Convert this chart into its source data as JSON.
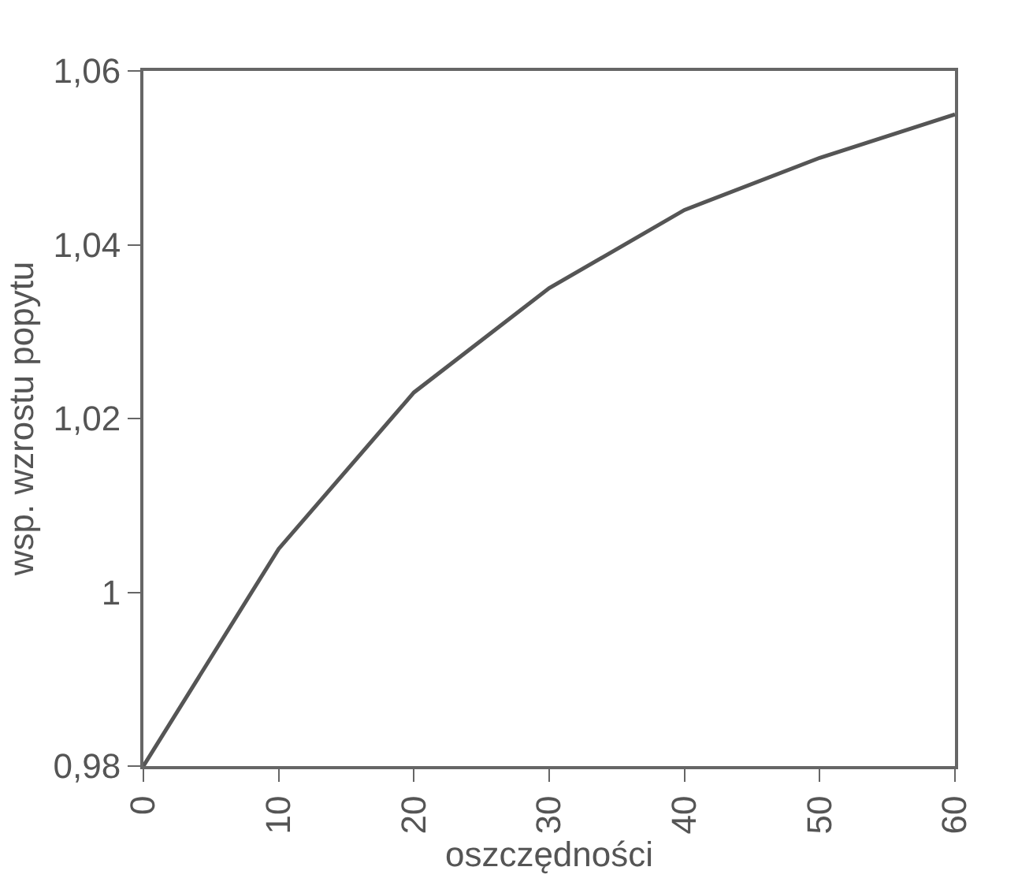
{
  "chart_data": {
    "type": "line",
    "xlabel": "oszczędności",
    "ylabel": "wsp. wzrostu popytu",
    "x": [
      0,
      10,
      20,
      30,
      40,
      50,
      60
    ],
    "series": [
      {
        "color": "#555555",
        "values": [
          0.98,
          1.005,
          1.023,
          1.035,
          1.044,
          1.05,
          1.055
        ]
      }
    ],
    "xlim": [
      0,
      60
    ],
    "xticks": [
      0,
      10,
      20,
      30,
      40,
      50,
      60
    ],
    "ylim": [
      0.98,
      1.06
    ],
    "yticks": [
      {
        "value": 0.98,
        "label": "0,98"
      },
      1,
      {
        "value": 1.02,
        "label": "1,02"
      },
      {
        "value": 1.04,
        "label": "1,04"
      },
      {
        "value": 1.06,
        "label": "1,06"
      }
    ],
    "marker": "none",
    "line_style": "solid"
  }
}
